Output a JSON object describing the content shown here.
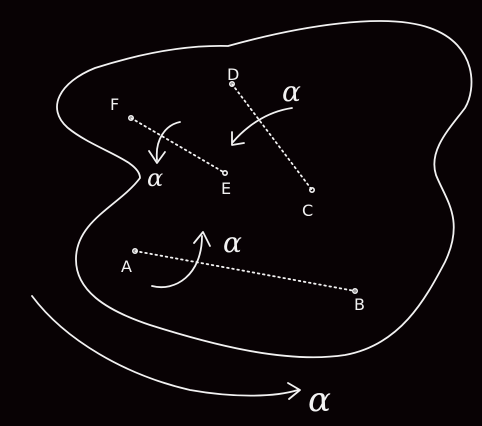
{
  "points": {
    "A": "A",
    "B": "B",
    "C": "C",
    "D": "D",
    "E": "E",
    "F": "F"
  },
  "alpha_symbol": "α",
  "colors": {
    "background": "#080204",
    "ink": "#f2f2f2"
  }
}
